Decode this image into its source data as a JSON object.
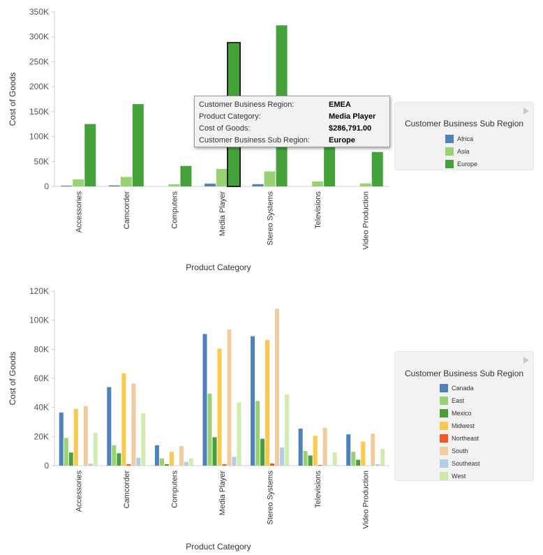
{
  "chart_data": [
    {
      "type": "bar",
      "xlabel": "Product Category",
      "ylabel": "Cost of Goods",
      "ylim": [
        0,
        350000
      ],
      "yticks": [
        "0",
        "50K",
        "100K",
        "150K",
        "200K",
        "250K",
        "300K",
        "350K"
      ],
      "categories": [
        "Accessories",
        "Camcorder",
        "Computers",
        "Media Player",
        "Stereo Systems",
        "Televisions",
        "Video Production"
      ],
      "series": [
        {
          "name": "Africa",
          "color": "#4e81bd",
          "values": [
            1500,
            2000,
            0,
            5500,
            4500,
            0,
            0
          ]
        },
        {
          "name": "Asia",
          "color": "#98d272",
          "values": [
            14000,
            19000,
            4500,
            35000,
            30000,
            10000,
            6000
          ]
        },
        {
          "name": "Europe",
          "color": "#45a23b",
          "values": [
            125000,
            165000,
            41000,
            286791,
            323000,
            80000,
            69000
          ]
        }
      ],
      "highlight": {
        "category": "Media Player",
        "series": "Europe"
      },
      "grid": false,
      "legend": {
        "title": "Customer Business Sub Region",
        "placement": "right",
        "items": [
          {
            "label": "Africa",
            "color": "#4e81bd"
          },
          {
            "label": "Asia",
            "color": "#98d272"
          },
          {
            "label": "Europe",
            "color": "#45a23b"
          }
        ]
      },
      "tooltip": [
        {
          "label": "Customer Business Region:",
          "value": "EMEA"
        },
        {
          "label": "Product Category:",
          "value": "Media Player"
        },
        {
          "label": "Cost of Goods:",
          "value": "$286,791.00"
        },
        {
          "label": "Customer Business Sub Region:",
          "value": "Europe"
        }
      ]
    },
    {
      "type": "bar",
      "xlabel": "Product Category",
      "ylabel": "Cost of Goods",
      "ylim": [
        0,
        120000
      ],
      "yticks": [
        "0",
        "20K",
        "40K",
        "60K",
        "80K",
        "100K",
        "120K"
      ],
      "categories": [
        "Accessories",
        "Camcorder",
        "Computers",
        "Media Player",
        "Stereo Systems",
        "Televisions",
        "Video Production"
      ],
      "series": [
        {
          "name": "Canada",
          "color": "#4e81bd",
          "values": [
            36500,
            54000,
            14000,
            90500,
            89000,
            25500,
            21500
          ]
        },
        {
          "name": "East",
          "color": "#98d272",
          "values": [
            19000,
            14000,
            5000,
            49500,
            44500,
            10000,
            9500
          ]
        },
        {
          "name": "Mexico",
          "color": "#45a23b",
          "values": [
            9000,
            8500,
            1000,
            19500,
            18500,
            7000,
            4000
          ]
        },
        {
          "name": "Midwest",
          "color": "#fcc84e",
          "values": [
            39000,
            63500,
            9500,
            80500,
            86500,
            20500,
            16500
          ]
        },
        {
          "name": "Northeast",
          "color": "#ee5a24",
          "values": [
            0,
            1000,
            0,
            1000,
            1500,
            500,
            0
          ]
        },
        {
          "name": "South",
          "color": "#f0cca0",
          "values": [
            41000,
            56500,
            13500,
            93500,
            108000,
            26000,
            22000
          ]
        },
        {
          "name": "Southeast",
          "color": "#b4cde6",
          "values": [
            1500,
            5500,
            2500,
            6000,
            12500,
            0,
            1000
          ]
        },
        {
          "name": "West",
          "color": "#cbeaa6",
          "values": [
            22500,
            36000,
            5000,
            43500,
            49000,
            9000,
            11500
          ]
        }
      ],
      "grid": false,
      "legend": {
        "title": "Customer Business Sub Region",
        "placement": "right",
        "items": [
          {
            "label": "Canada",
            "color": "#4e81bd"
          },
          {
            "label": "East",
            "color": "#98d272"
          },
          {
            "label": "Mexico",
            "color": "#45a23b"
          },
          {
            "label": "Midwest",
            "color": "#fcc84e"
          },
          {
            "label": "Northeast",
            "color": "#ee5a24"
          },
          {
            "label": "South",
            "color": "#f0cca0"
          },
          {
            "label": "Southeast",
            "color": "#b4cde6"
          },
          {
            "label": "West",
            "color": "#cbeaa6"
          }
        ]
      }
    }
  ]
}
